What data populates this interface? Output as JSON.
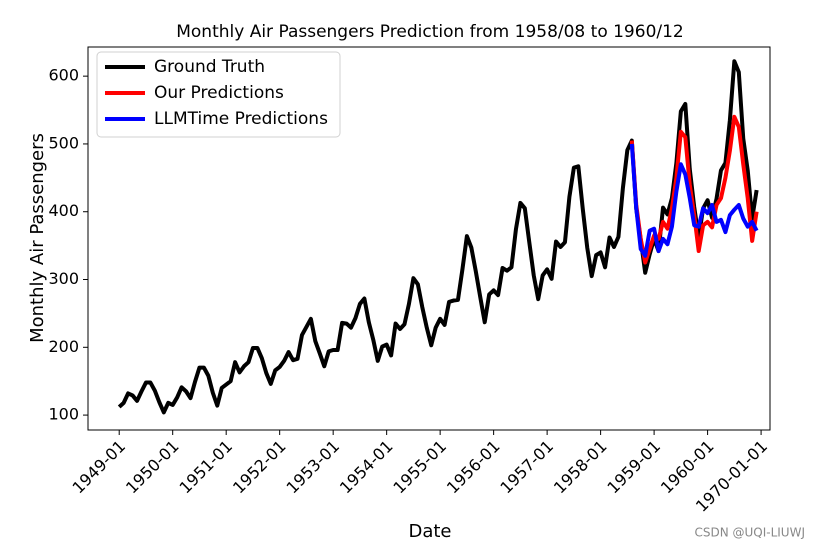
{
  "chart_data": {
    "type": "line",
    "title": "Monthly Air Passengers Prediction from 1958/08 to 1960/12",
    "x_label": "Date",
    "y_label": "Monthly Air Passengers",
    "watermark": "CSDN @UQI-LIUWJ",
    "legend": "upper left",
    "xlim": [
      "1948-06",
      "1961-03"
    ],
    "ylim": [
      78,
      643
    ],
    "xticks": [
      "1949-01",
      "1950-01",
      "1951-01",
      "1952-01",
      "1953-01",
      "1954-01",
      "1955-01",
      "1956-01",
      "1957-01",
      "1958-01",
      "1959-01",
      "1960-01",
      {
        "value": "1961-01",
        "label": "1970-01-01"
      }
    ],
    "yticks": [
      100,
      200,
      300,
      400,
      500,
      600
    ],
    "series": [
      {
        "name": "Ground Truth",
        "color": "#000000",
        "x": [
          "1949-01",
          "1949-02",
          "1949-03",
          "1949-04",
          "1949-05",
          "1949-06",
          "1949-07",
          "1949-08",
          "1949-09",
          "1949-10",
          "1949-11",
          "1949-12",
          "1950-01",
          "1950-02",
          "1950-03",
          "1950-04",
          "1950-05",
          "1950-06",
          "1950-07",
          "1950-08",
          "1950-09",
          "1950-10",
          "1950-11",
          "1950-12",
          "1951-01",
          "1951-02",
          "1951-03",
          "1951-04",
          "1951-05",
          "1951-06",
          "1951-07",
          "1951-08",
          "1951-09",
          "1951-10",
          "1951-11",
          "1951-12",
          "1952-01",
          "1952-02",
          "1952-03",
          "1952-04",
          "1952-05",
          "1952-06",
          "1952-07",
          "1952-08",
          "1952-09",
          "1952-10",
          "1952-11",
          "1952-12",
          "1953-01",
          "1953-02",
          "1953-03",
          "1953-04",
          "1953-05",
          "1953-06",
          "1953-07",
          "1953-08",
          "1953-09",
          "1953-10",
          "1953-11",
          "1953-12",
          "1954-01",
          "1954-02",
          "1954-03",
          "1954-04",
          "1954-05",
          "1954-06",
          "1954-07",
          "1954-08",
          "1954-09",
          "1954-10",
          "1954-11",
          "1954-12",
          "1955-01",
          "1955-02",
          "1955-03",
          "1955-04",
          "1955-05",
          "1955-06",
          "1955-07",
          "1955-08",
          "1955-09",
          "1955-10",
          "1955-11",
          "1955-12",
          "1956-01",
          "1956-02",
          "1956-03",
          "1956-04",
          "1956-05",
          "1956-06",
          "1956-07",
          "1956-08",
          "1956-09",
          "1956-10",
          "1956-11",
          "1956-12",
          "1957-01",
          "1957-02",
          "1957-03",
          "1957-04",
          "1957-05",
          "1957-06",
          "1957-07",
          "1957-08",
          "1957-09",
          "1957-10",
          "1957-11",
          "1957-12",
          "1958-01",
          "1958-02",
          "1958-03",
          "1958-04",
          "1958-05",
          "1958-06",
          "1958-07",
          "1958-08",
          "1958-09",
          "1958-10",
          "1958-11",
          "1958-12",
          "1959-01",
          "1959-02",
          "1959-03",
          "1959-04",
          "1959-05",
          "1959-06",
          "1959-07",
          "1959-08",
          "1959-09",
          "1959-10",
          "1959-11",
          "1959-12",
          "1960-01",
          "1960-02",
          "1960-03",
          "1960-04",
          "1960-05",
          "1960-06",
          "1960-07",
          "1960-08",
          "1960-09",
          "1960-10",
          "1960-11",
          "1960-12"
        ],
        "values": [
          112,
          118,
          132,
          129,
          121,
          135,
          148,
          148,
          136,
          119,
          104,
          118,
          115,
          126,
          141,
          135,
          125,
          149,
          170,
          170,
          158,
          133,
          114,
          140,
          145,
          150,
          178,
          163,
          172,
          178,
          199,
          199,
          184,
          162,
          146,
          166,
          171,
          180,
          193,
          181,
          183,
          218,
          230,
          242,
          209,
          191,
          172,
          194,
          196,
          196,
          236,
          235,
          229,
          243,
          264,
          272,
          237,
          211,
          180,
          201,
          204,
          188,
          235,
          227,
          234,
          264,
          302,
          293,
          259,
          229,
          203,
          229,
          242,
          233,
          267,
          269,
          270,
          315,
          364,
          347,
          312,
          274,
          237,
          278,
          284,
          277,
          317,
          313,
          318,
          374,
          413,
          405,
          355,
          306,
          271,
          306,
          315,
          301,
          356,
          348,
          355,
          422,
          465,
          467,
          404,
          347,
          305,
          336,
          340,
          318,
          362,
          348,
          363,
          435,
          491,
          505,
          404,
          359,
          310,
          337,
          360,
          342,
          406,
          396,
          420,
          472,
          548,
          559,
          463,
          407,
          362,
          405,
          417,
          391,
          419,
          461,
          472,
          535,
          622,
          606,
          508,
          461,
          390,
          432
        ]
      },
      {
        "name": "Our Predictions",
        "color": "#ff0000",
        "x": [
          "1958-08",
          "1958-09",
          "1958-10",
          "1958-11",
          "1958-12",
          "1959-01",
          "1959-02",
          "1959-03",
          "1959-04",
          "1959-05",
          "1959-06",
          "1959-07",
          "1959-08",
          "1959-09",
          "1959-10",
          "1959-11",
          "1959-12",
          "1960-01",
          "1960-02",
          "1960-03",
          "1960-04",
          "1960-05",
          "1960-06",
          "1960-07",
          "1960-08",
          "1960-09",
          "1960-10",
          "1960-11",
          "1960-12"
        ],
        "values": [
          505,
          410,
          360,
          325,
          345,
          365,
          360,
          385,
          375,
          405,
          450,
          518,
          510,
          440,
          395,
          342,
          380,
          385,
          377,
          410,
          420,
          450,
          490,
          540,
          525,
          470,
          420,
          357,
          400
        ]
      },
      {
        "name": "LLMTime Predictions",
        "color": "#0000ff",
        "x": [
          "1958-08",
          "1958-09",
          "1958-10",
          "1958-11",
          "1958-12",
          "1959-01",
          "1959-02",
          "1959-03",
          "1959-04",
          "1959-05",
          "1959-06",
          "1959-07",
          "1959-08",
          "1959-09",
          "1959-10",
          "1959-11",
          "1959-12",
          "1960-01",
          "1960-02",
          "1960-03",
          "1960-04",
          "1960-05",
          "1960-06",
          "1960-07",
          "1960-08",
          "1960-09",
          "1960-10",
          "1960-11",
          "1960-12"
        ],
        "values": [
          500,
          405,
          345,
          335,
          372,
          375,
          342,
          360,
          352,
          378,
          430,
          470,
          455,
          420,
          380,
          378,
          405,
          398,
          410,
          385,
          388,
          370,
          395,
          403,
          410,
          390,
          378,
          385,
          372
        ]
      }
    ]
  }
}
